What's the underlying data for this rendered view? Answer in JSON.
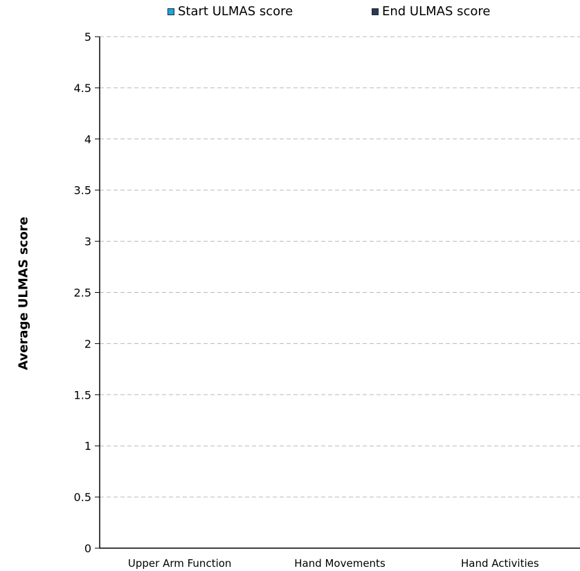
{
  "chart_data": {
    "type": "bar",
    "categories": [
      "Upper Arm Function",
      "Hand Movements",
      "Hand Activities"
    ],
    "series": [
      {
        "name": "Start ULMAS score",
        "color": "#1ea6dc",
        "values": [
          0,
          0,
          0
        ]
      },
      {
        "name": "End ULMAS score",
        "color": "#2a3a55",
        "values": [
          0,
          0,
          0
        ]
      }
    ],
    "ylabel": "Average ULMAS score",
    "xlabel": "",
    "ylim": [
      0,
      5
    ],
    "yticks": [
      "0",
      "0.5",
      "1",
      "1.5",
      "2",
      "2.5",
      "3",
      "3.5",
      "4",
      "4.5",
      "5"
    ],
    "grid": true,
    "legend_position": "top"
  }
}
